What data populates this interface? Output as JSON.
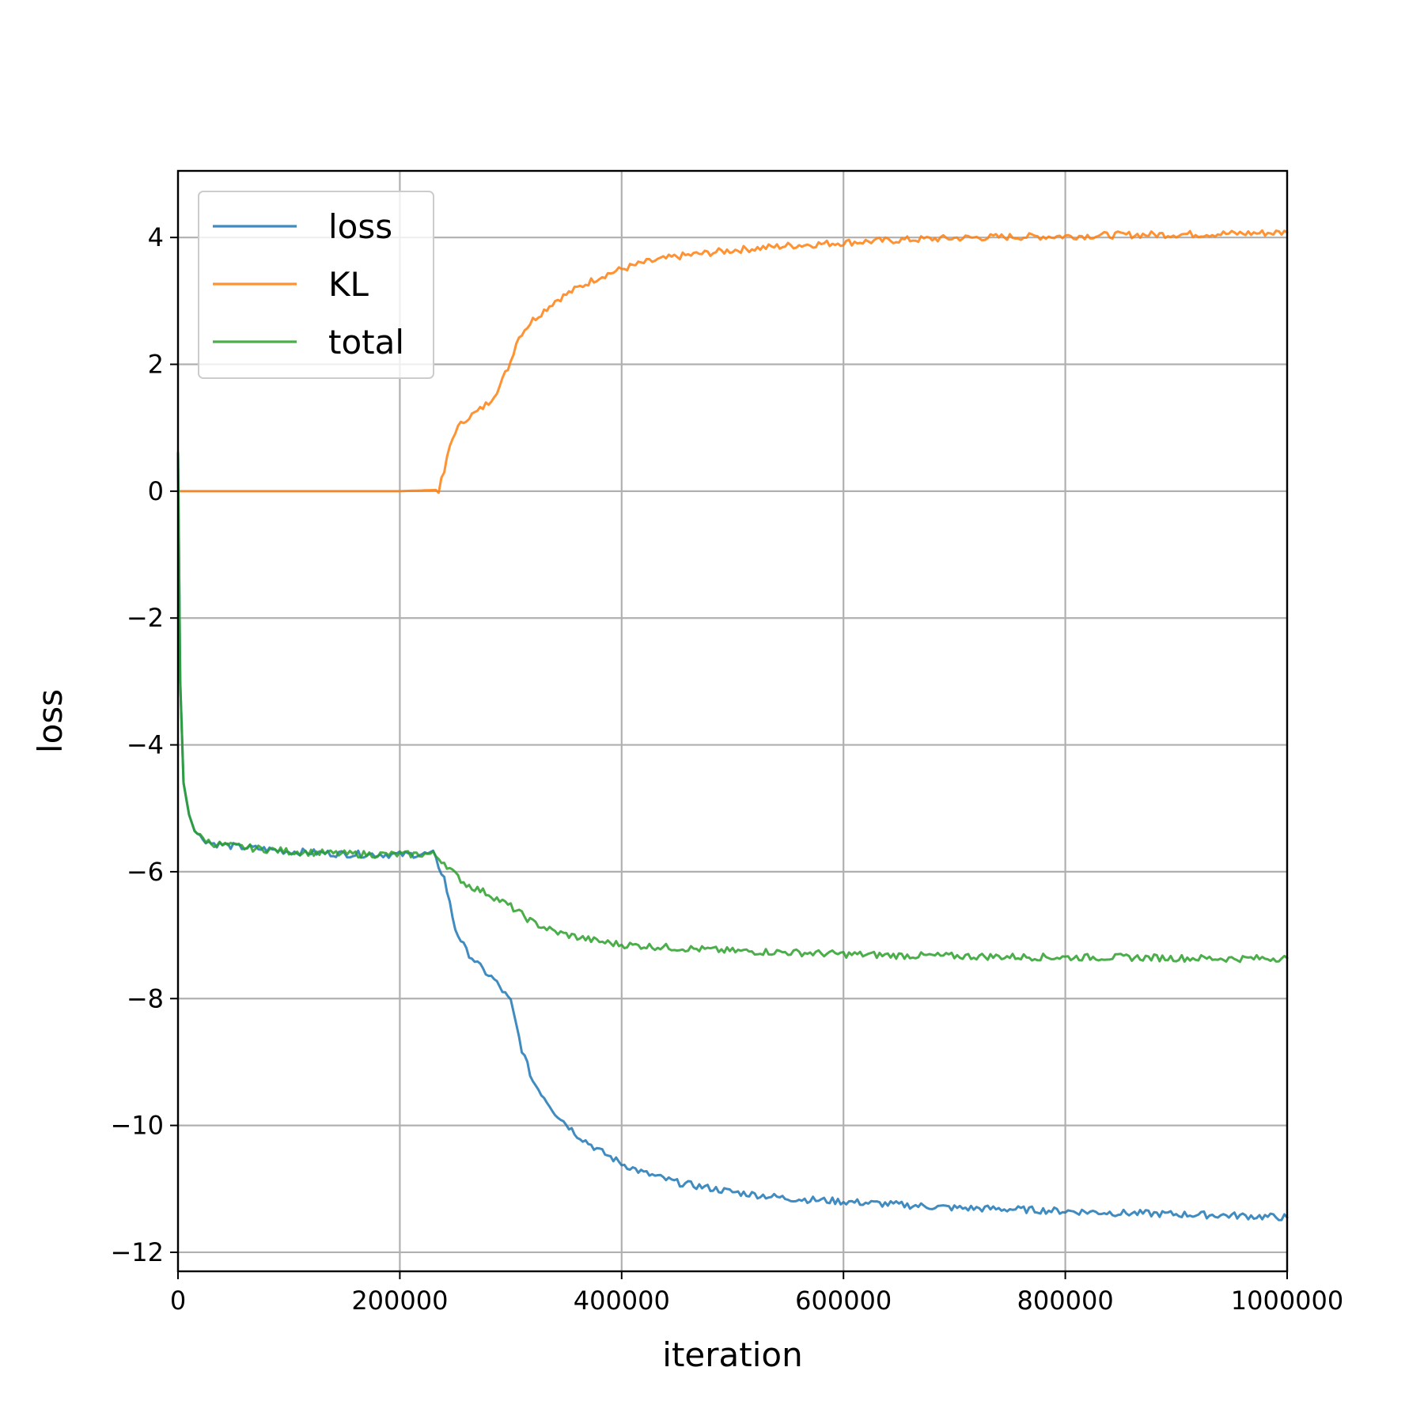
{
  "chart_data": {
    "type": "line",
    "xlabel": "iteration",
    "ylabel": "loss",
    "xlim": [
      0,
      1000000
    ],
    "ylim": [
      -12.3,
      5.05
    ],
    "xticks": [
      0,
      200000,
      400000,
      600000,
      800000,
      1000000
    ],
    "xtick_labels": [
      "0",
      "200000",
      "400000",
      "600000",
      "800000",
      "1000000"
    ],
    "yticks": [
      4,
      2,
      0,
      -2,
      -4,
      -6,
      -8,
      -10,
      -12
    ],
    "ytick_labels": [
      "4",
      "2",
      "0",
      "−2",
      "−4",
      "−6",
      "−8",
      "−10",
      "−12"
    ],
    "grid": true,
    "legend_position": "upper-left",
    "series": [
      {
        "name": "loss",
        "color": "#1f77b4",
        "x": [
          0,
          2000,
          5000,
          10000,
          15000,
          20000,
          30000,
          50000,
          100000,
          150000,
          200000,
          230000,
          240000,
          250000,
          260000,
          275000,
          285000,
          300000,
          310000,
          320000,
          340000,
          360000,
          380000,
          400000,
          420000,
          450000,
          500000,
          550000,
          600000,
          650000,
          700000,
          750000,
          800000,
          850000,
          900000,
          950000,
          1000000
        ],
        "y": [
          0.6,
          -3.0,
          -4.6,
          -5.1,
          -5.35,
          -5.45,
          -5.55,
          -5.6,
          -5.68,
          -5.72,
          -5.73,
          -5.72,
          -6.1,
          -6.9,
          -7.25,
          -7.55,
          -7.7,
          -8.05,
          -8.8,
          -9.3,
          -9.8,
          -10.15,
          -10.4,
          -10.6,
          -10.75,
          -10.9,
          -11.05,
          -11.15,
          -11.2,
          -11.25,
          -11.3,
          -11.32,
          -11.35,
          -11.38,
          -11.4,
          -11.42,
          -11.45
        ]
      },
      {
        "name": "KL",
        "color": "#ff7f0e",
        "x": [
          0,
          100000,
          200000,
          235000,
          240000,
          245000,
          250000,
          260000,
          270000,
          280000,
          290000,
          300000,
          305000,
          310000,
          320000,
          340000,
          360000,
          380000,
          400000,
          420000,
          450000,
          500000,
          550000,
          600000,
          650000,
          700000,
          750000,
          800000,
          850000,
          900000,
          950000,
          1000000
        ],
        "y": [
          0,
          0,
          0,
          0.02,
          0.3,
          0.7,
          0.95,
          1.15,
          1.25,
          1.4,
          1.65,
          2.05,
          2.35,
          2.5,
          2.7,
          3.0,
          3.2,
          3.38,
          3.5,
          3.6,
          3.7,
          3.8,
          3.87,
          3.92,
          3.96,
          3.99,
          4.01,
          4.02,
          4.04,
          4.05,
          4.06,
          4.08
        ]
      },
      {
        "name": "total",
        "color": "#2ca02c",
        "x": [
          0,
          2000,
          5000,
          10000,
          15000,
          20000,
          30000,
          50000,
          100000,
          150000,
          200000,
          230000,
          240000,
          250000,
          260000,
          280000,
          300000,
          320000,
          340000,
          360000,
          380000,
          400000,
          450000,
          500000,
          550000,
          600000,
          650000,
          700000,
          750000,
          800000,
          850000,
          900000,
          950000,
          1000000
        ],
        "y": [
          0.6,
          -3.0,
          -4.6,
          -5.1,
          -5.35,
          -5.45,
          -5.55,
          -5.6,
          -5.68,
          -5.72,
          -5.73,
          -5.72,
          -5.85,
          -6.05,
          -6.2,
          -6.35,
          -6.55,
          -6.8,
          -6.95,
          -7.03,
          -7.1,
          -7.15,
          -7.2,
          -7.25,
          -7.27,
          -7.3,
          -7.32,
          -7.33,
          -7.34,
          -7.35,
          -7.35,
          -7.36,
          -7.37,
          -7.36
        ]
      }
    ]
  }
}
